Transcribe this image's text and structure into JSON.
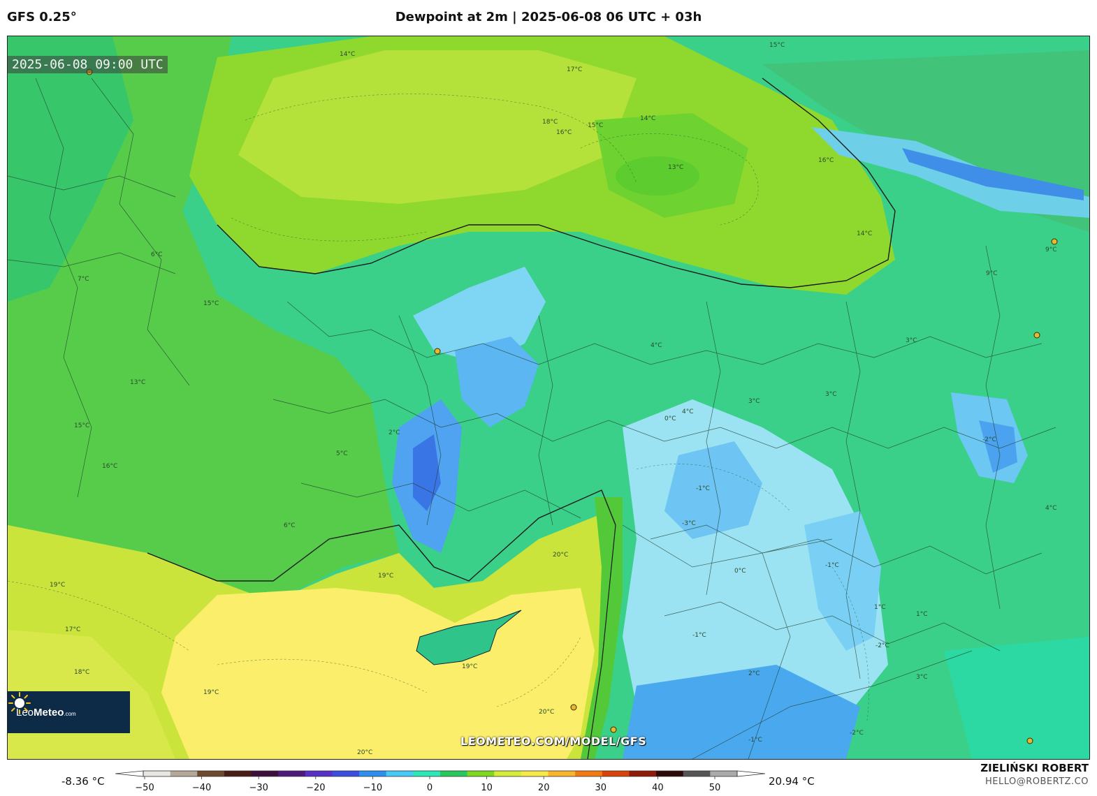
{
  "header": {
    "model": "GFS 0.25°",
    "title": "Dewpoint at 2m | 2025-06-08 06 UTC + 03h"
  },
  "map": {
    "valid_time": "2025-06-08 09:00 UTC",
    "watermark_url": "LEOMETEO.COM/MODEL/GFS",
    "logo": {
      "brand_light": "Leo",
      "brand_bold": "Meteo",
      "brand_suffix": ".com"
    },
    "contour_labels": [
      "14°C",
      "16°C",
      "17°C",
      "18°C",
      "15°C",
      "14°C",
      "13°C",
      "16°C",
      "15°C",
      "14°C",
      "9°C",
      "6°C",
      "7°C",
      "15°C",
      "13°C",
      "15°C",
      "16°C",
      "19°C",
      "19°C",
      "20°C",
      "18°C",
      "19°C",
      "20°C",
      "20°C",
      "19°C",
      "17°C",
      "2°C",
      "4°C",
      "3°C",
      "5°C",
      "6°C",
      "4°C",
      "0°C",
      "-1°C",
      "-2°C",
      "-1°C",
      "1°C",
      "-2°C",
      "2°C",
      "3°C",
      "-3°C",
      "-1°C",
      "0°C",
      "3°C",
      "4°C",
      "-2°C",
      "-1°C",
      "3°C",
      "9°C",
      "1°C"
    ]
  },
  "colorbar": {
    "min_label": "-8.36 °C",
    "max_label": "20.94 °C",
    "ticks": [
      "−50",
      "−40",
      "−30",
      "−20",
      "−10",
      "0",
      "10",
      "20",
      "30",
      "40",
      "50"
    ],
    "colors": [
      "#e8e6e1",
      "#b3a89a",
      "#6b4a2e",
      "#4a1c17",
      "#3d0f3d",
      "#4b1a7a",
      "#5730c8",
      "#3a4ee0",
      "#2f8ff0",
      "#46c9f5",
      "#2be8b6",
      "#27c95e",
      "#7fd81f",
      "#d6ec3a",
      "#f7e94a",
      "#f7b52c",
      "#f27a12",
      "#d9430a",
      "#8e1b08",
      "#2b0909",
      "#555555",
      "#aaaaaa"
    ]
  },
  "credits": {
    "author": "ZIELIŃSKI ROBERT",
    "email": "HELLO@ROBERTZ.CO"
  }
}
